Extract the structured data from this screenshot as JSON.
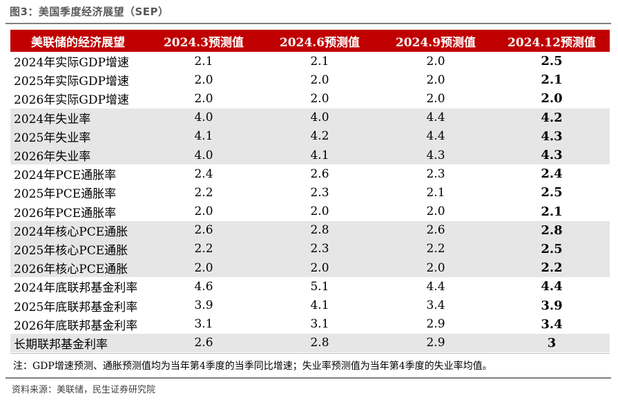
{
  "figure": {
    "title": "图3：美国季度经济展望（SEP）",
    "note": "注：GDP增速预测、通胀预测值均为当年第4季度的当季同比增速；失业率预测值为当年第4季度的失业率均值。",
    "source": "资料来源：美联储，民生证券研究院"
  },
  "table": {
    "headers": [
      "美联储的经济展望",
      "2024.3预测值",
      "2024.6预测值",
      "2024.9预测值",
      "2024.12预测值"
    ],
    "rows": [
      {
        "label": "2024年实际GDP增速",
        "values": [
          "2.1",
          "2.1",
          "2.0",
          "2.5"
        ]
      },
      {
        "label": "2025年实际GDP增速",
        "values": [
          "2.0",
          "2.0",
          "2.0",
          "2.1"
        ]
      },
      {
        "label": "2026年实际GDP增速",
        "values": [
          "2.0",
          "2.0",
          "2.0",
          "2.0"
        ]
      },
      {
        "label": "2024年失业率",
        "values": [
          "4.0",
          "4.0",
          "4.4",
          "4.2"
        ]
      },
      {
        "label": "2025年失业率",
        "values": [
          "4.1",
          "4.2",
          "4.4",
          "4.3"
        ]
      },
      {
        "label": "2026年失业率",
        "values": [
          "4.0",
          "4.1",
          "4.3",
          "4.3"
        ]
      },
      {
        "label": "2024年PCE通胀率",
        "values": [
          "2.4",
          "2.6",
          "2.3",
          "2.4"
        ]
      },
      {
        "label": "2025年PCE通胀率",
        "values": [
          "2.2",
          "2.3",
          "2.1",
          "2.5"
        ]
      },
      {
        "label": "2026年PCE通胀率",
        "values": [
          "2.0",
          "2.0",
          "2.0",
          "2.1"
        ]
      },
      {
        "label": "2024年核心PCE通胀",
        "values": [
          "2.6",
          "2.8",
          "2.6",
          "2.8"
        ]
      },
      {
        "label": "2025年核心PCE通胀",
        "values": [
          "2.2",
          "2.3",
          "2.2",
          "2.5"
        ]
      },
      {
        "label": "2026年核心PCE通胀",
        "values": [
          "2.0",
          "2.0",
          "2.0",
          "2.2"
        ]
      },
      {
        "label": "2024年底联邦基金利率",
        "values": [
          "4.6",
          "5.1",
          "4.4",
          "4.4"
        ]
      },
      {
        "label": "2025年底联邦基金利率",
        "values": [
          "3.9",
          "4.1",
          "3.4",
          "3.9"
        ]
      },
      {
        "label": "2026年底联邦基金利率",
        "values": [
          "3.1",
          "3.1",
          "2.9",
          "3.4"
        ]
      },
      {
        "label": "长期联邦基金利率",
        "values": [
          "2.6",
          "2.8",
          "2.9",
          "3"
        ]
      }
    ]
  },
  "colors": {
    "header_bg": "#c00000",
    "band_bg": "#e6e6e6",
    "rule": "#7f7f7f"
  }
}
